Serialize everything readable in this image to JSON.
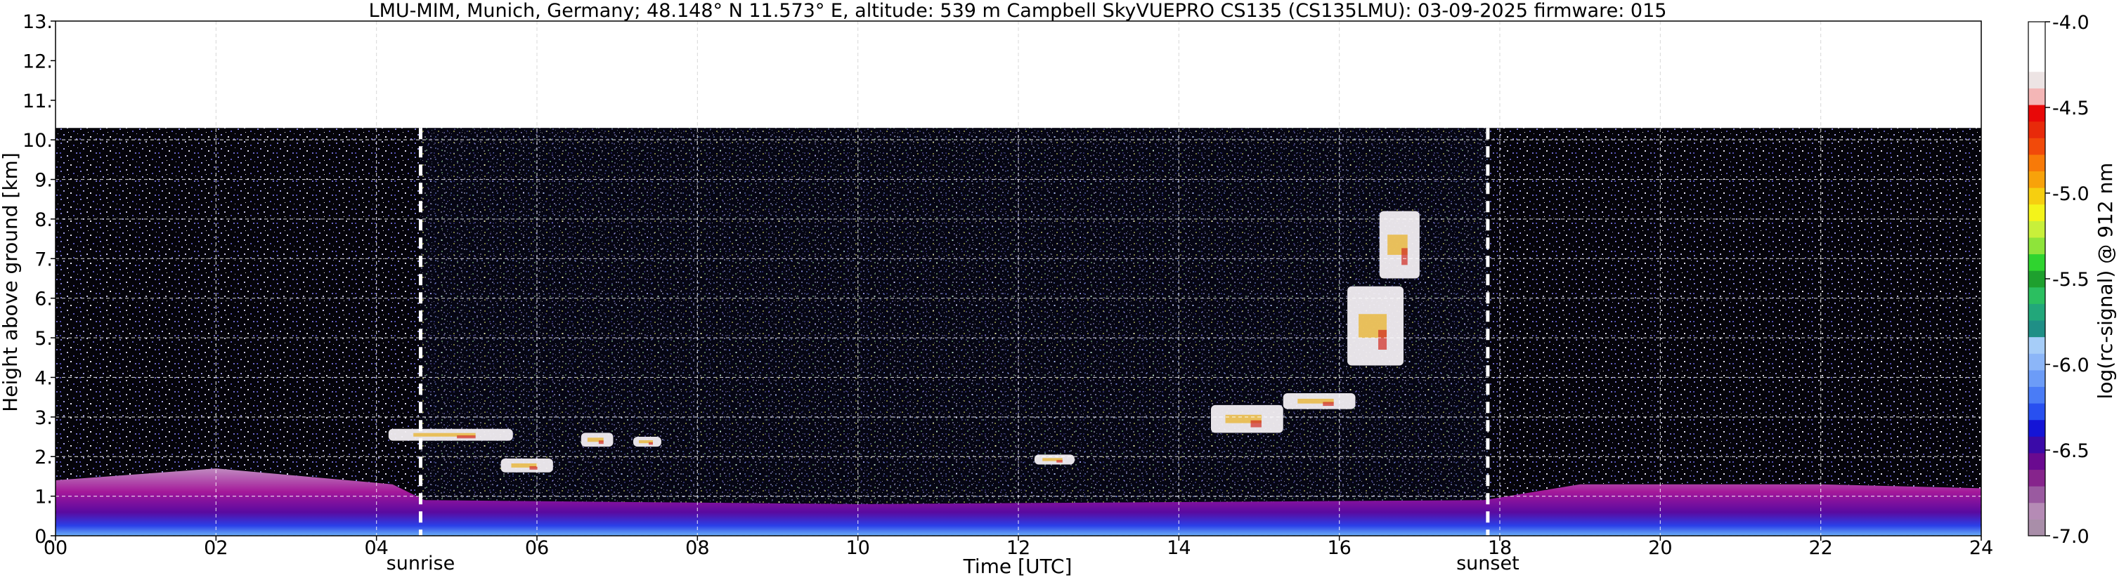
{
  "chart_data": {
    "type": "heatmap",
    "title": "LMU-MIM, Munich, Germany; 48.148° N 11.573° E, altitude: 539 m    Campbell SkyVUEPRO CS135 (CS135LMU): 03-09-2025    firmware: 015",
    "xlabel": "Time [UTC]",
    "ylabel": "Height above ground [km]",
    "xlim": [
      0,
      24
    ],
    "ylim": [
      0,
      13
    ],
    "x_ticks": [
      "00",
      "02",
      "04",
      "06",
      "08",
      "10",
      "12",
      "14",
      "16",
      "18",
      "20",
      "22",
      "24"
    ],
    "y_ticks": [
      "0.",
      "1.",
      "2.",
      "3.",
      "4.",
      "5.",
      "6.",
      "7.",
      "8.",
      "9.",
      "10.",
      "11.",
      "12.",
      "13."
    ],
    "grid": true,
    "data_top_km": 10.3,
    "colorbar": {
      "label": "log(rc-signal) @ 912 nm",
      "range": [
        -7.0,
        -4.0
      ],
      "tick_labels": [
        "-4.0",
        "-4.5",
        "-5.0",
        "-5.5",
        "-6.0",
        "-6.5",
        "-7.0"
      ],
      "colors": [
        "#a98ea9",
        "#b58bb5",
        "#9a5aa0",
        "#86248c",
        "#6a0a90",
        "#3a0aa8",
        "#1414d6",
        "#2850f0",
        "#4a7cf6",
        "#6c9cf7",
        "#8cb6f8",
        "#a6cdf8",
        "#1f8f86",
        "#22a77a",
        "#2bbf60",
        "#1ea02e",
        "#2fd42f",
        "#8ee43a",
        "#c8f03a",
        "#f4f41a",
        "#f6cf10",
        "#f8a20a",
        "#f87a08",
        "#f14a0a",
        "#e82a0a",
        "#e80808",
        "#f4b6b6",
        "#ede4e4",
        "#ffffff",
        "#ffffff",
        "#ffffff"
      ]
    },
    "markers": [
      {
        "label": "sunrise",
        "x": 4.55
      },
      {
        "label": "sunset",
        "x": 17.85
      }
    ],
    "cloud_layers": [
      {
        "x0": 4.15,
        "x1": 5.7,
        "base_km": 2.4,
        "top_km": 2.7
      },
      {
        "x0": 5.55,
        "x1": 6.2,
        "base_km": 1.6,
        "top_km": 1.95
      },
      {
        "x0": 6.55,
        "x1": 6.95,
        "base_km": 2.25,
        "top_km": 2.6
      },
      {
        "x0": 7.2,
        "x1": 7.55,
        "base_km": 2.25,
        "top_km": 2.5
      },
      {
        "x0": 12.2,
        "x1": 12.7,
        "base_km": 1.8,
        "top_km": 2.05
      },
      {
        "x0": 14.4,
        "x1": 15.3,
        "base_km": 2.6,
        "top_km": 3.3
      },
      {
        "x0": 15.3,
        "x1": 16.2,
        "base_km": 3.2,
        "top_km": 3.6
      },
      {
        "x0": 16.1,
        "x1": 16.8,
        "base_km": 4.3,
        "top_km": 6.3
      },
      {
        "x0": 16.5,
        "x1": 17.0,
        "base_km": 6.5,
        "top_km": 8.2
      }
    ],
    "aerosol_layer_top_km": [
      {
        "x": 0,
        "y": 1.4
      },
      {
        "x": 2,
        "y": 1.7
      },
      {
        "x": 4.2,
        "y": 1.3
      },
      {
        "x": 4.6,
        "y": 0.9
      },
      {
        "x": 10,
        "y": 0.8
      },
      {
        "x": 17.8,
        "y": 0.9
      },
      {
        "x": 19,
        "y": 1.3
      },
      {
        "x": 22,
        "y": 1.3
      },
      {
        "x": 24,
        "y": 1.2
      }
    ]
  }
}
